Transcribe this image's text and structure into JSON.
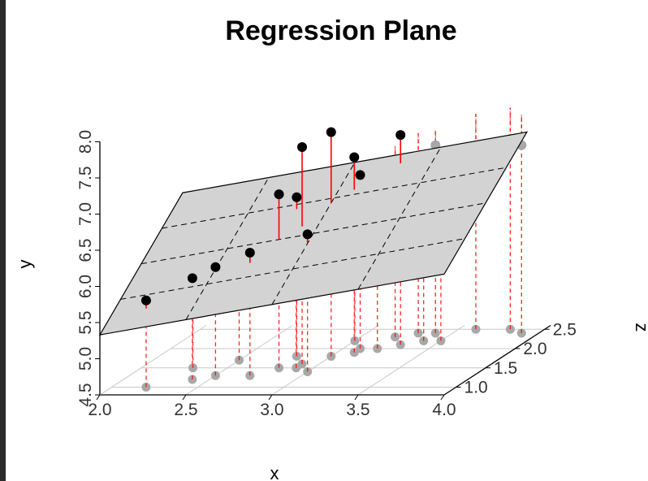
{
  "chart_data": {
    "type": "scatter",
    "title": "Regression Plane",
    "xlabel": "x",
    "ylabel": "y",
    "zlabel": "z",
    "x_ticks": [
      "2.0",
      "2.5",
      "3.0",
      "3.5",
      "4.0"
    ],
    "y_ticks": [
      "4.5",
      "5.0",
      "5.5",
      "6.0",
      "6.5",
      "7.0",
      "7.5",
      "8.0"
    ],
    "z_ticks": [
      "1.0",
      "1.5",
      "2.0",
      "2.5"
    ],
    "xlim": [
      2.0,
      4.0
    ],
    "ylim": [
      4.5,
      8.0
    ],
    "zlim": [
      0.8,
      2.5
    ],
    "colors": {
      "points": "#000000",
      "shadow": "#a8a8a8",
      "plane": "#d3d3d3",
      "residual_above": "#ff0000",
      "drop_line": "#ff0000",
      "grid": "#c8c8c8"
    },
    "points": [
      {
        "x": 2.2,
        "y": 5.7,
        "z": 1.0
      },
      {
        "x": 2.4,
        "y": 5.9,
        "z": 1.2
      },
      {
        "x": 2.5,
        "y": 6.0,
        "z": 1.3
      },
      {
        "x": 2.3,
        "y": 5.9,
        "z": 1.5
      },
      {
        "x": 2.7,
        "y": 6.2,
        "z": 1.3
      },
      {
        "x": 2.9,
        "y": 6.3,
        "z": 1.5
      },
      {
        "x": 3.0,
        "y": 6.4,
        "z": 1.4
      },
      {
        "x": 2.8,
        "y": 6.9,
        "z": 1.5
      },
      {
        "x": 2.8,
        "y": 6.7,
        "z": 1.8
      },
      {
        "x": 2.5,
        "y": 5.8,
        "z": 1.7
      },
      {
        "x": 2.9,
        "y": 7.5,
        "z": 1.6
      },
      {
        "x": 3.0,
        "y": 7.6,
        "z": 1.8
      },
      {
        "x": 3.1,
        "y": 7.2,
        "z": 1.9
      },
      {
        "x": 3.1,
        "y": 6.9,
        "z": 2.0
      },
      {
        "x": 3.2,
        "y": 6.7,
        "z": 2.0
      },
      {
        "x": 3.3,
        "y": 7.4,
        "z": 2.1
      },
      {
        "x": 3.0,
        "y": 6.5,
        "z": 2.2
      },
      {
        "x": 3.2,
        "y": 6.3,
        "z": 2.3
      },
      {
        "x": 3.4,
        "y": 6.8,
        "z": 2.2
      },
      {
        "x": 3.4,
        "y": 7.1,
        "z": 2.4
      },
      {
        "x": 3.6,
        "y": 6.5,
        "z": 2.5
      },
      {
        "x": 3.9,
        "y": 7.1,
        "z": 2.4
      },
      {
        "x": 3.8,
        "y": 7.0,
        "z": 2.5
      },
      {
        "x": 3.5,
        "y": 6.0,
        "z": 2.2
      },
      {
        "x": 3.3,
        "y": 6.1,
        "z": 2.4
      }
    ]
  }
}
